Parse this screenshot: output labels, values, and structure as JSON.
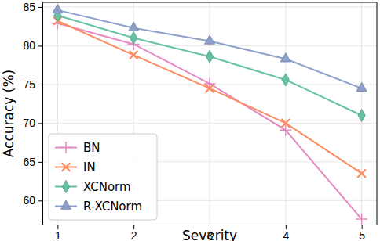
{
  "chart_data": {
    "type": "line",
    "x_label": "Severity",
    "y_label": "Accuracy (%)",
    "x": [
      1,
      2,
      3,
      4,
      5
    ],
    "series": [
      {
        "name": "BN",
        "color": "#e78ac3",
        "marker": "plus",
        "values": [
          82.9,
          80.2,
          75.1,
          69.1,
          57.6
        ]
      },
      {
        "name": "IN",
        "color": "#fc8d62",
        "marker": "x",
        "values": [
          83.2,
          78.8,
          74.5,
          70.0,
          63.5
        ]
      },
      {
        "name": "XCNorm",
        "color": "#66c2a5",
        "marker": "diamond",
        "values": [
          83.9,
          81.0,
          78.6,
          75.6,
          71.0
        ]
      },
      {
        "name": "R-XCNorm",
        "color": "#8da0cb",
        "marker": "triangle",
        "values": [
          84.6,
          82.3,
          80.6,
          78.3,
          74.5
        ]
      }
    ],
    "xlim": [
      0.8,
      5.2
    ],
    "xticks": [
      1,
      2,
      3,
      4,
      5
    ],
    "ylim": [
      56.9,
      85.6
    ],
    "yticks": [
      60,
      65,
      70,
      75,
      80,
      85
    ],
    "grid": true,
    "legend": "lower left"
  }
}
